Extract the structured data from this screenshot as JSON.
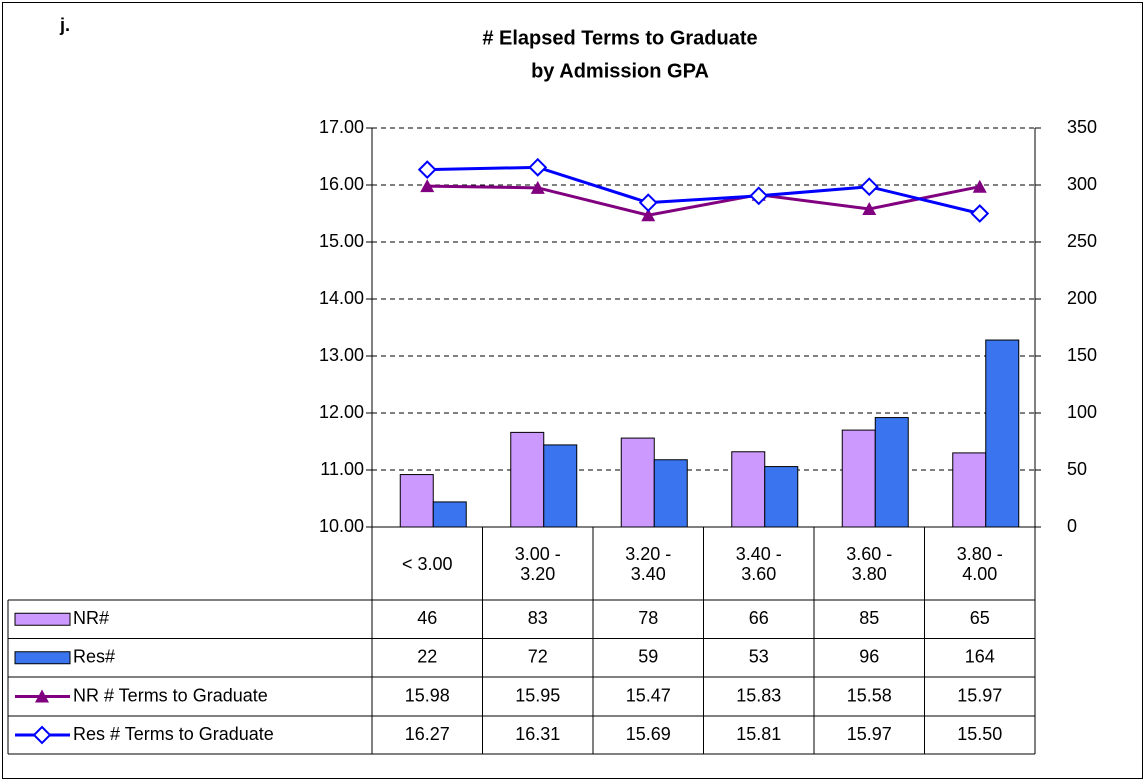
{
  "chart_data": {
    "type": "bar-line",
    "panel_label": "j.",
    "title": "# Elapsed Terms to Graduate",
    "subtitle": "by Admission GPA",
    "categories": [
      "< 3.00",
      "3.00 - 3.20",
      "3.20 - 3.40",
      "3.40 - 3.60",
      "3.60 - 3.80",
      "3.80 - 4.00"
    ],
    "ylim": [
      10,
      17
    ],
    "yticks": [
      {
        "value": 10,
        "label": "10.00"
      },
      {
        "value": 11,
        "label": "11.00"
      },
      {
        "value": 12,
        "label": "12.00"
      },
      {
        "value": 13,
        "label": "13.00"
      },
      {
        "value": 14,
        "label": "14.00"
      },
      {
        "value": 15,
        "label": "15.00"
      },
      {
        "value": 16,
        "label": "16.00"
      },
      {
        "value": 17,
        "label": "17.00"
      }
    ],
    "y2lim": [
      0,
      350
    ],
    "y2ticks": [
      0,
      50,
      100,
      150,
      200,
      250,
      300,
      350
    ],
    "grid": true,
    "series": [
      {
        "name": "NR#",
        "type": "bar",
        "axis": "y2",
        "color": "#cc99ff",
        "values": [
          46,
          83,
          78,
          66,
          85,
          65
        ]
      },
      {
        "name": "Res#",
        "type": "bar",
        "axis": "y2",
        "color": "#3a74ee",
        "values": [
          22,
          72,
          59,
          53,
          96,
          164
        ]
      },
      {
        "name": "NR # Terms to Graduate",
        "type": "line",
        "marker": "triangle",
        "color": "#800080",
        "values": [
          15.98,
          15.95,
          15.47,
          15.83,
          15.58,
          15.97
        ],
        "value_labels": [
          "15.98",
          "15.95",
          "15.47",
          "15.83",
          "15.58",
          "15.97"
        ]
      },
      {
        "name": "Res # Terms to Graduate",
        "type": "line",
        "marker": "diamond",
        "color": "#0000ff",
        "values": [
          16.27,
          16.31,
          15.69,
          15.81,
          15.97,
          15.5
        ],
        "value_labels": [
          "16.27",
          "16.31",
          "15.69",
          "15.81",
          "15.97",
          "15.50"
        ]
      }
    ]
  }
}
